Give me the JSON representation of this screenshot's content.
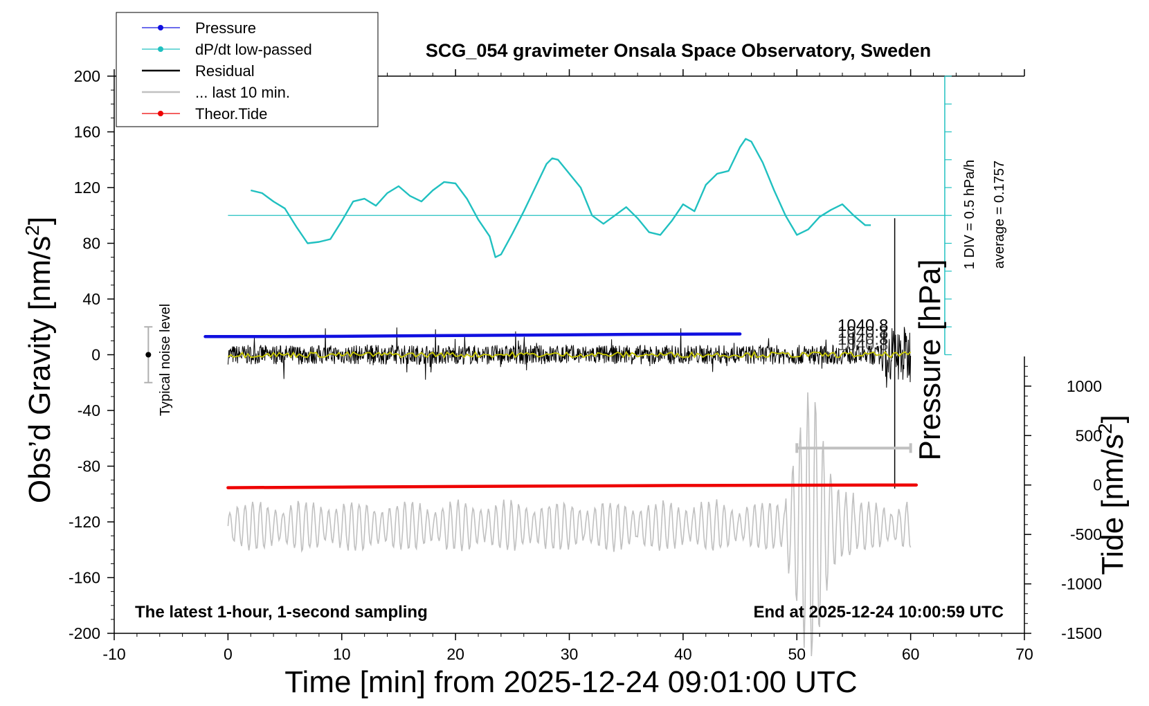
{
  "chart_data": {
    "type": "line",
    "title": "SCG_054 gravimeter Onsala Space Observatory, Sweden",
    "xlabel": "Time [min] from 2025-12-24 09:01:00 UTC",
    "ylabel_left": "Obs’d Gravity [nm/s",
    "ylabel_left_sup": "2",
    "ylabel_left_close": "]",
    "ylabel_right_tide": "Tide [nm/s",
    "ylabel_right_tide_sup": "2",
    "ylabel_right_tide_close": "]",
    "ylabel_right_pressure": "Pressure [hPa]",
    "xlim": [
      -10,
      70
    ],
    "ylim": [
      -200,
      200
    ],
    "tide_ylim": [
      -1500,
      1300
    ],
    "xticks": [
      "-10",
      "0",
      "10",
      "20",
      "30",
      "40",
      "50",
      "60",
      "70"
    ],
    "yticks": [
      "200",
      "160",
      "120",
      "80",
      "40",
      "0",
      "-40",
      "-80",
      "-120",
      "-160",
      "-200"
    ],
    "tide_ticks": [
      "1000",
      "500",
      "0",
      "-500",
      "-1000",
      "-1500"
    ],
    "legend": {
      "position": "top-left",
      "entries": [
        {
          "label": "Pressure",
          "color": "#1010e0"
        },
        {
          "label": "dP/dt low-passed",
          "color": "#20c0c0"
        },
        {
          "label": "Residual",
          "color": "#000000"
        },
        {
          "label": "... last 10 min.",
          "color": "#c0c0c0"
        },
        {
          "label": "Theor.Tide",
          "color": "#ee0000"
        }
      ]
    },
    "annotations": {
      "noise_label": "Typical noise level",
      "div_label": "1 DIV = 0.5 hPa/h",
      "average_label": "average = 0.1757",
      "bottom_left": "The latest 1-hour, 1-second sampling",
      "bottom_right": "End at 2025-12-24 10:00:59 UTC",
      "pressure_value": "1040.8"
    },
    "series": [
      {
        "name": "Pressure",
        "color": "#1010e0",
        "x": [
          -2,
          5,
          10,
          15,
          20,
          25,
          30,
          35,
          40,
          45
        ],
        "values": [
          13,
          13,
          13.2,
          13.5,
          13.8,
          14,
          14.3,
          14.6,
          14.8,
          14.9
        ]
      },
      {
        "name": "dP/dt low-passed",
        "color": "#20c0c0",
        "baseline": 100,
        "x": [
          2,
          3,
          4,
          5,
          6,
          7,
          8,
          9,
          10,
          11,
          12,
          13,
          14,
          15,
          16,
          17,
          18,
          19,
          20,
          21,
          22,
          23,
          23.5,
          24,
          25,
          26,
          27,
          28,
          28.5,
          29,
          30,
          31,
          32,
          33,
          34,
          35,
          36,
          37,
          38,
          39,
          40,
          41,
          42,
          43,
          44,
          45,
          45.5,
          46,
          47,
          48,
          49,
          50,
          51,
          52,
          53,
          54,
          55,
          56,
          56.5
        ],
        "values": [
          118,
          116,
          110,
          105,
          92,
          80,
          81,
          83,
          96,
          110,
          112,
          107,
          116,
          121,
          114,
          110,
          118,
          124,
          123,
          112,
          97,
          85,
          70,
          72,
          87,
          103,
          120,
          137,
          141,
          140,
          130,
          120,
          100,
          94,
          100,
          106,
          98,
          88,
          86,
          96,
          108,
          103,
          122,
          130,
          132,
          149,
          155,
          153,
          138,
          118,
          100,
          86,
          90,
          99,
          104,
          108,
          100,
          93,
          93
        ]
      },
      {
        "name": "Residual",
        "color": "#000000",
        "x_range": [
          0,
          60
        ],
        "amplitude": 7,
        "spike_x": 58.6,
        "spike_range": [
          -96,
          98
        ]
      },
      {
        "name": "Residual low-passed",
        "color": "#c8c800",
        "x_range": [
          0,
          60
        ],
        "amplitude": 2
      },
      {
        "name": "... last 10 min.",
        "color": "#c0c0c0",
        "x_range": [
          0,
          60
        ],
        "center": -123,
        "amplitude": 14,
        "burst_x": [
          49,
          55
        ],
        "burst_range": [
          -220,
          -25
        ],
        "bar_x": [
          50,
          60
        ],
        "bar_y": -67
      },
      {
        "name": "Theor.Tide",
        "color": "#ee0000",
        "x": [
          0,
          10,
          20,
          30,
          40,
          50,
          60.5
        ],
        "tide_values": [
          -27,
          -21,
          -15,
          -10,
          -5,
          -2,
          0
        ]
      }
    ],
    "noise_bar": {
      "x": -7,
      "center": 0,
      "half_range": 20
    },
    "pressure_axis": {
      "x": 63,
      "y_range": [
        0,
        200
      ]
    }
  }
}
